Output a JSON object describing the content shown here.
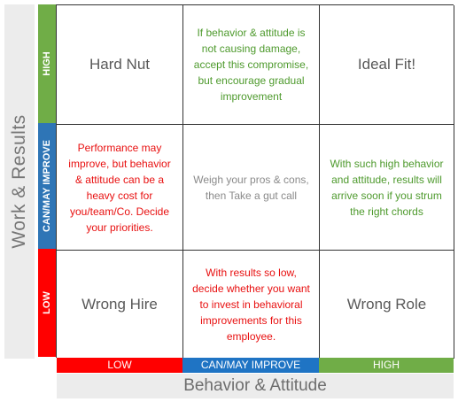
{
  "y_axis": {
    "title": "Work & Results",
    "categories": {
      "high": "HIGH",
      "mid": "CAN/MAY IMPROVE",
      "low": "LOW"
    }
  },
  "x_axis": {
    "title": "Behavior & Attitude",
    "categories": {
      "low": "LOW",
      "mid": "CAN/MAY IMPROVE",
      "high": "HIGH"
    }
  },
  "cells": {
    "high_low": "Hard Nut",
    "high_mid": "If behavior & attitude is not causing damage, accept this compromise, but encourage gradual improvement",
    "high_high": "Ideal Fit!",
    "mid_low": "Performance may improve, but behavior & attitude can be a heavy cost for you/team/Co. Decide your priorities.",
    "mid_mid": "Weigh your pros & cons, then Take a gut call",
    "mid_high": "With such high behavior and attitude, results will arrive soon if you strum the right chords",
    "low_low": "Wrong Hire",
    "low_mid": "With results so low, decide whether you want to invest in behavioral improvements for this employee.",
    "low_high": "Wrong Role"
  },
  "colors": {
    "high": "#70ad47",
    "mid": "#2e75b6",
    "low": "#ff0000"
  }
}
